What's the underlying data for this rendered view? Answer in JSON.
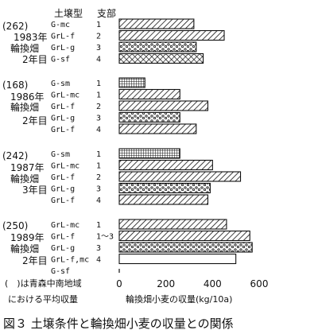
{
  "header": {
    "soil_type": "土壌型",
    "branch": "支部"
  },
  "chart_data": {
    "type": "bar",
    "orientation": "horizontal",
    "xlabel": "輪換畑小麦の収量(kg/10a)",
    "xlim": [
      0,
      600
    ],
    "xticks": [
      "0",
      "200",
      "400",
      "600"
    ],
    "groups": [
      {
        "avg": "(262)",
        "year": "1983年",
        "field": "輪換畑",
        "nth": "2年目",
        "bars": [
          {
            "soil": "G-mc",
            "branch": "1",
            "value": 320,
            "pattern": "hatch"
          },
          {
            "soil": "GrL-f",
            "branch": "2",
            "value": 450,
            "pattern": "hatch"
          },
          {
            "soil": "GrL-g",
            "branch": "3",
            "value": 330,
            "pattern": "dots"
          },
          {
            "soil": "G-sf",
            "branch": "4",
            "value": 360,
            "pattern": "cross"
          }
        ]
      },
      {
        "avg": "(168)",
        "year": "1986年",
        "field": "輪換畑",
        "nth": "2年目",
        "bars": [
          {
            "soil": "G-sm",
            "branch": "1",
            "value": 110,
            "pattern": "grid"
          },
          {
            "soil": "GrL-mc",
            "branch": "1",
            "value": 260,
            "pattern": "hatch"
          },
          {
            "soil": "GrL-f",
            "branch": "2",
            "value": 380,
            "pattern": "hatch"
          },
          {
            "soil": "GrL-g",
            "branch": "3",
            "value": 260,
            "pattern": "dots"
          },
          {
            "soil": "GrL-f",
            "branch": "4",
            "value": 330,
            "pattern": "hatch"
          }
        ]
      },
      {
        "avg": "(242)",
        "year": "1987年",
        "field": "輪換畑",
        "nth": "3年目",
        "bars": [
          {
            "soil": "G-sm",
            "branch": "1",
            "value": 260,
            "pattern": "grid"
          },
          {
            "soil": "GrL-mc",
            "branch": "1",
            "value": 400,
            "pattern": "hatch"
          },
          {
            "soil": "GrL-f",
            "branch": "2",
            "value": 520,
            "pattern": "hatch"
          },
          {
            "soil": "GrL-g",
            "branch": "3",
            "value": 390,
            "pattern": "dots"
          },
          {
            "soil": "GrL-f",
            "branch": "4",
            "value": 380,
            "pattern": "hatch"
          }
        ]
      },
      {
        "avg": "(250)",
        "year": "1989年",
        "field": "輪換畑",
        "nth": "2年目",
        "bars": [
          {
            "soil": "GrL-mc",
            "branch": "1",
            "value": 460,
            "pattern": "hatch"
          },
          {
            "soil": "GrL-f",
            "branch": "1〜3",
            "value": 560,
            "pattern": "hatch"
          },
          {
            "soil": "GrL-g",
            "branch": "3",
            "value": 570,
            "pattern": "dots"
          },
          {
            "soil": "GrL-f,mc",
            "branch": "4",
            "value": 500,
            "pattern": "none"
          },
          {
            "soil": "G-sf",
            "branch": "",
            "value": null,
            "pattern": "none"
          }
        ]
      }
    ]
  },
  "note": {
    "line1": "(　)は青森中南地域",
    "line2": "における平均収量"
  },
  "caption": "図３ 土壌条件と輪換畑小麦の収量との関係"
}
